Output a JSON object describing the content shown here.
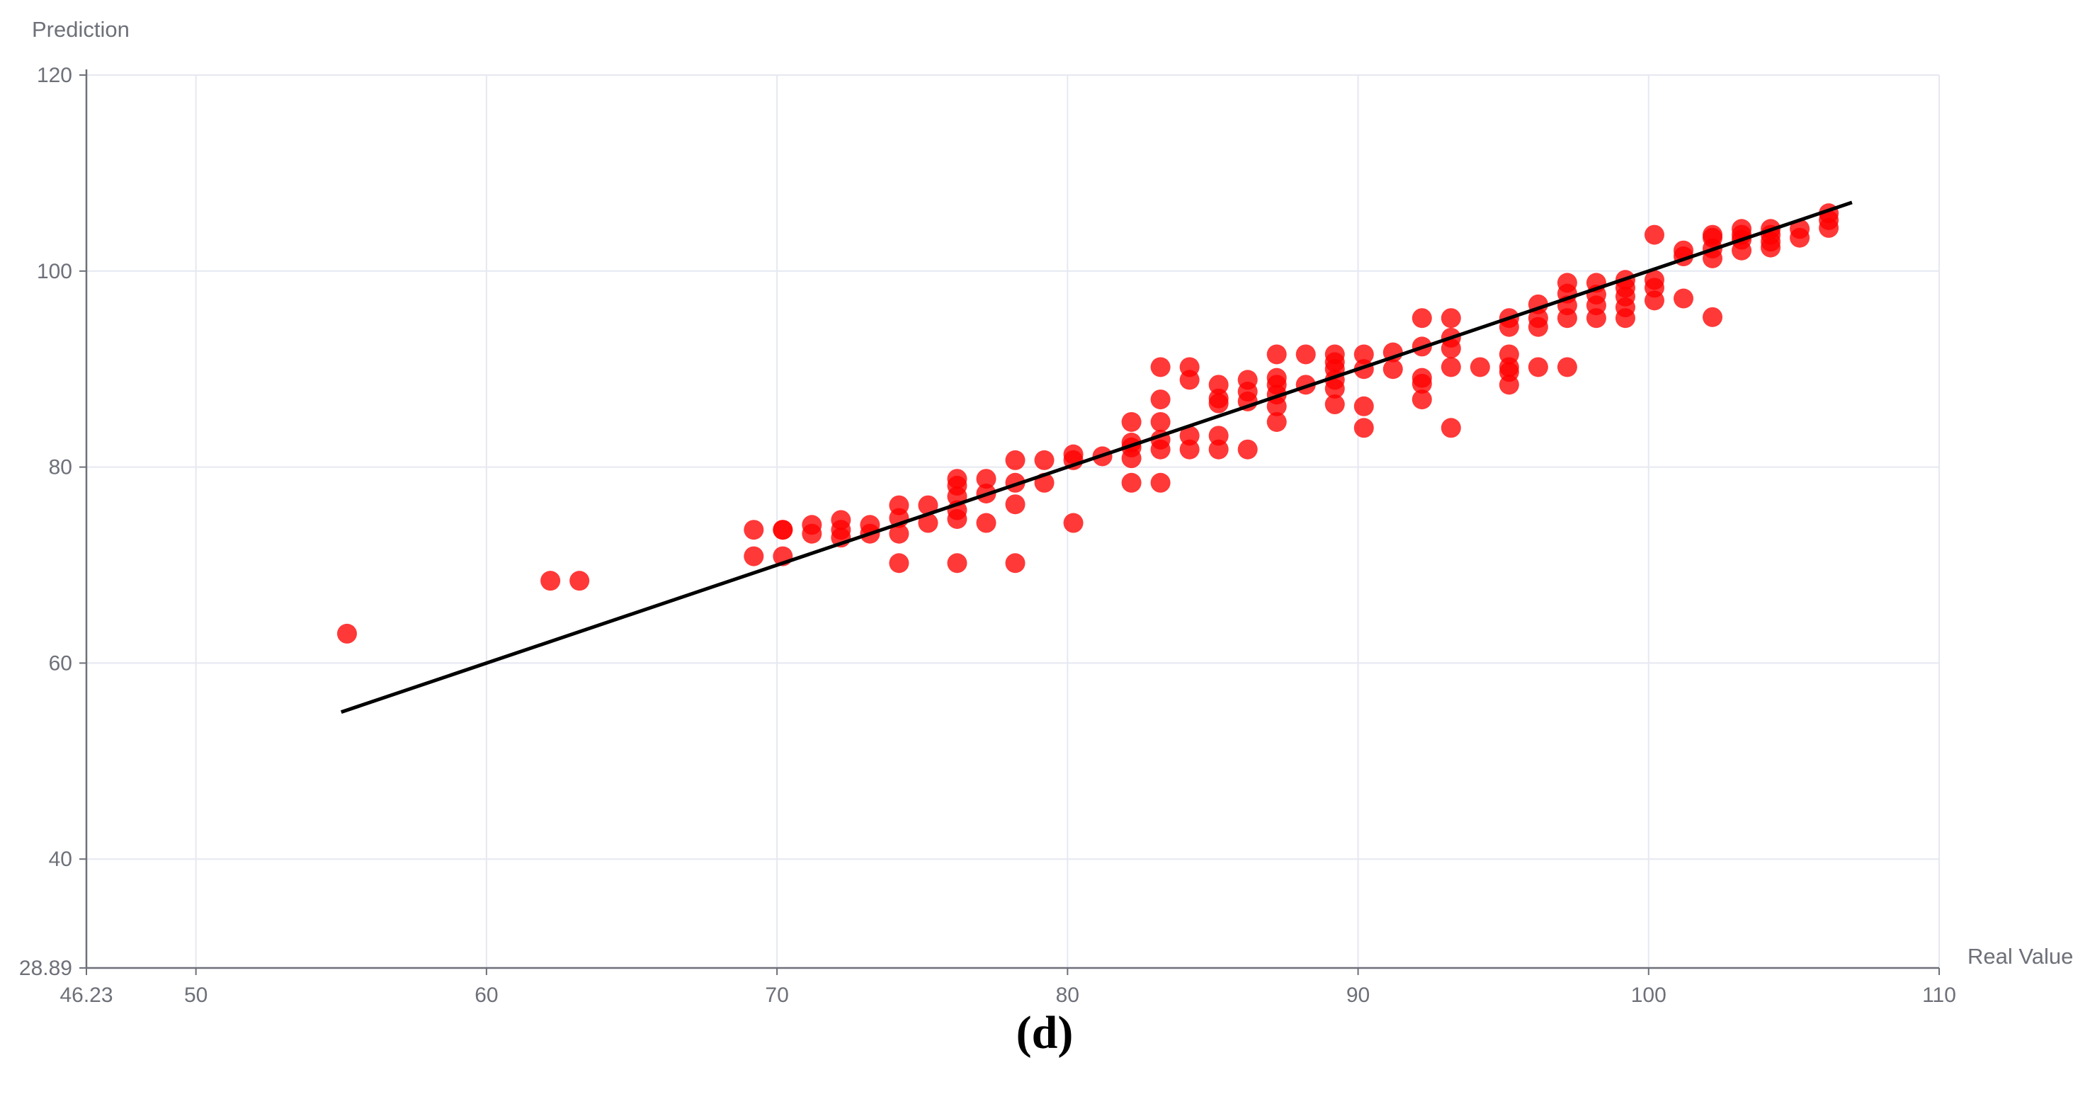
{
  "chart_data": {
    "type": "scatter",
    "title": "",
    "caption": "(d)",
    "xlabel": "Real Value",
    "ylabel": "Prediction",
    "xlim": [
      46.23,
      110
    ],
    "ylim": [
      28.89,
      120
    ],
    "x_ticks": [
      50,
      60,
      70,
      80,
      90,
      100,
      110
    ],
    "y_ticks": [
      40,
      60,
      80,
      100,
      120
    ],
    "x_min_label": "46.23",
    "y_min_label": "28.89",
    "grid": true,
    "colors": {
      "points": "#ff0000",
      "fit_line": "#000000",
      "grid": "#e6e8f2",
      "axis": "#6e7079"
    },
    "fit_line": {
      "x": [
        55,
        107
      ],
      "y": [
        55,
        107
      ]
    },
    "series": [
      {
        "values": [
          [
            55.2,
            63.0
          ],
          [
            62.2,
            68.4
          ],
          [
            63.2,
            68.4
          ],
          [
            69.2,
            70.9
          ],
          [
            69.2,
            73.6
          ],
          [
            70.2,
            70.9
          ],
          [
            70.2,
            73.6
          ],
          [
            70.2,
            73.6
          ],
          [
            71.2,
            73.2
          ],
          [
            71.2,
            74.1
          ],
          [
            72.2,
            72.8
          ],
          [
            72.2,
            73.6
          ],
          [
            72.2,
            74.6
          ],
          [
            73.2,
            73.2
          ],
          [
            73.2,
            74.1
          ],
          [
            74.2,
            70.2
          ],
          [
            74.2,
            73.2
          ],
          [
            74.2,
            74.8
          ],
          [
            74.2,
            76.1
          ],
          [
            75.2,
            74.3
          ],
          [
            75.2,
            76.1
          ],
          [
            76.2,
            70.2
          ],
          [
            76.2,
            74.7
          ],
          [
            76.2,
            75.6
          ],
          [
            76.2,
            77.0
          ],
          [
            76.2,
            78.1
          ],
          [
            76.2,
            78.8
          ],
          [
            77.2,
            74.3
          ],
          [
            77.2,
            77.3
          ],
          [
            77.2,
            78.8
          ],
          [
            78.2,
            70.2
          ],
          [
            78.2,
            76.2
          ],
          [
            78.2,
            78.4
          ],
          [
            78.2,
            80.7
          ],
          [
            79.2,
            78.4
          ],
          [
            79.2,
            80.7
          ],
          [
            80.2,
            74.3
          ],
          [
            80.2,
            80.7
          ],
          [
            80.2,
            81.3
          ],
          [
            81.2,
            81.1
          ],
          [
            82.2,
            78.4
          ],
          [
            82.2,
            80.9
          ],
          [
            82.2,
            82.0
          ],
          [
            82.2,
            82.5
          ],
          [
            82.2,
            84.6
          ],
          [
            83.2,
            78.4
          ],
          [
            83.2,
            81.8
          ],
          [
            83.2,
            82.8
          ],
          [
            83.2,
            84.6
          ],
          [
            83.2,
            86.9
          ],
          [
            83.2,
            90.2
          ],
          [
            84.2,
            81.8
          ],
          [
            84.2,
            83.2
          ],
          [
            84.2,
            88.9
          ],
          [
            84.2,
            90.2
          ],
          [
            85.2,
            81.8
          ],
          [
            85.2,
            83.2
          ],
          [
            85.2,
            86.5
          ],
          [
            85.2,
            87.0
          ],
          [
            85.2,
            88.4
          ],
          [
            86.2,
            81.8
          ],
          [
            86.2,
            86.7
          ],
          [
            86.2,
            87.7
          ],
          [
            86.2,
            88.9
          ],
          [
            87.2,
            84.6
          ],
          [
            87.2,
            86.2
          ],
          [
            87.2,
            87.4
          ],
          [
            87.2,
            88.4
          ],
          [
            87.2,
            89.1
          ],
          [
            87.2,
            91.5
          ],
          [
            88.2,
            88.4
          ],
          [
            88.2,
            91.5
          ],
          [
            89.2,
            86.4
          ],
          [
            89.2,
            88.0
          ],
          [
            89.2,
            88.9
          ],
          [
            89.2,
            90.0
          ],
          [
            89.2,
            90.7
          ],
          [
            89.2,
            91.5
          ],
          [
            90.2,
            84.0
          ],
          [
            90.2,
            86.2
          ],
          [
            90.2,
            90.0
          ],
          [
            90.2,
            91.5
          ],
          [
            91.2,
            90.0
          ],
          [
            91.2,
            91.7
          ],
          [
            92.2,
            86.9
          ],
          [
            92.2,
            88.5
          ],
          [
            92.2,
            89.1
          ],
          [
            92.2,
            92.3
          ],
          [
            92.2,
            95.2
          ],
          [
            93.2,
            84.0
          ],
          [
            93.2,
            90.2
          ],
          [
            93.2,
            92.1
          ],
          [
            93.2,
            93.2
          ],
          [
            93.2,
            95.2
          ],
          [
            94.2,
            90.2
          ],
          [
            95.2,
            88.4
          ],
          [
            95.2,
            89.7
          ],
          [
            95.2,
            90.2
          ],
          [
            95.2,
            91.5
          ],
          [
            95.2,
            94.3
          ],
          [
            95.2,
            95.2
          ],
          [
            96.2,
            90.2
          ],
          [
            96.2,
            94.3
          ],
          [
            96.2,
            95.2
          ],
          [
            96.2,
            96.6
          ],
          [
            97.2,
            90.2
          ],
          [
            97.2,
            95.2
          ],
          [
            97.2,
            96.5
          ],
          [
            97.2,
            97.7
          ],
          [
            97.2,
            98.8
          ],
          [
            98.2,
            95.2
          ],
          [
            98.2,
            96.5
          ],
          [
            98.2,
            97.6
          ],
          [
            98.2,
            98.8
          ],
          [
            99.2,
            95.2
          ],
          [
            99.2,
            96.3
          ],
          [
            99.2,
            97.4
          ],
          [
            99.2,
            98.3
          ],
          [
            99.2,
            99.1
          ],
          [
            100.2,
            97.0
          ],
          [
            100.2,
            98.3
          ],
          [
            100.2,
            99.1
          ],
          [
            100.2,
            103.7
          ],
          [
            101.2,
            97.2
          ],
          [
            101.2,
            101.5
          ],
          [
            101.2,
            102.1
          ],
          [
            102.2,
            95.3
          ],
          [
            102.2,
            101.3
          ],
          [
            102.2,
            102.3
          ],
          [
            102.2,
            103.4
          ],
          [
            102.2,
            103.7
          ],
          [
            103.2,
            102.1
          ],
          [
            103.2,
            103.2
          ],
          [
            103.2,
            103.7
          ],
          [
            103.2,
            104.3
          ],
          [
            104.2,
            102.4
          ],
          [
            104.2,
            103.0
          ],
          [
            104.2,
            103.7
          ],
          [
            104.2,
            104.3
          ],
          [
            105.2,
            103.4
          ],
          [
            105.2,
            104.3
          ],
          [
            106.2,
            104.4
          ],
          [
            106.2,
            105.2
          ],
          [
            106.2,
            105.9
          ]
        ]
      }
    ]
  }
}
